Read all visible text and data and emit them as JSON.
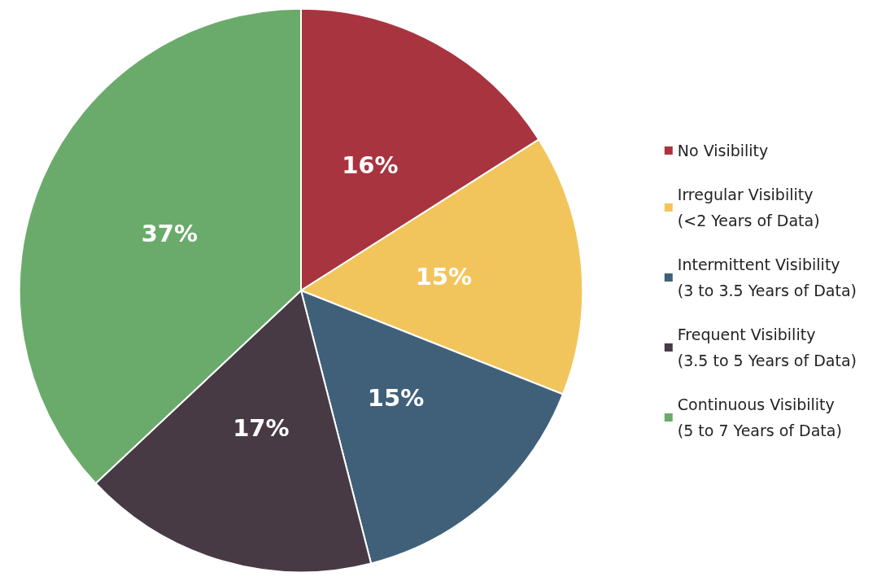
{
  "chart_data": {
    "type": "pie",
    "categories": [
      "No Visibility",
      "Irregular Visibility\n(<2 Years of Data)",
      "Intermittent Visibility\n(3 to 3.5 Years of Data)",
      "Frequent Visibility\n(3.5 to 5 Years of Data)",
      "Continuous Visibility\n(5 to 7 Years of Data)"
    ],
    "values": [
      16,
      15,
      15,
      17,
      37
    ],
    "colors": [
      "#a8343f",
      "#f2c55c",
      "#3f6078",
      "#473a45",
      "#6aab6b"
    ],
    "value_labels": [
      "16%",
      "15%",
      "15%",
      "17%",
      "37%"
    ],
    "legend": "right"
  }
}
